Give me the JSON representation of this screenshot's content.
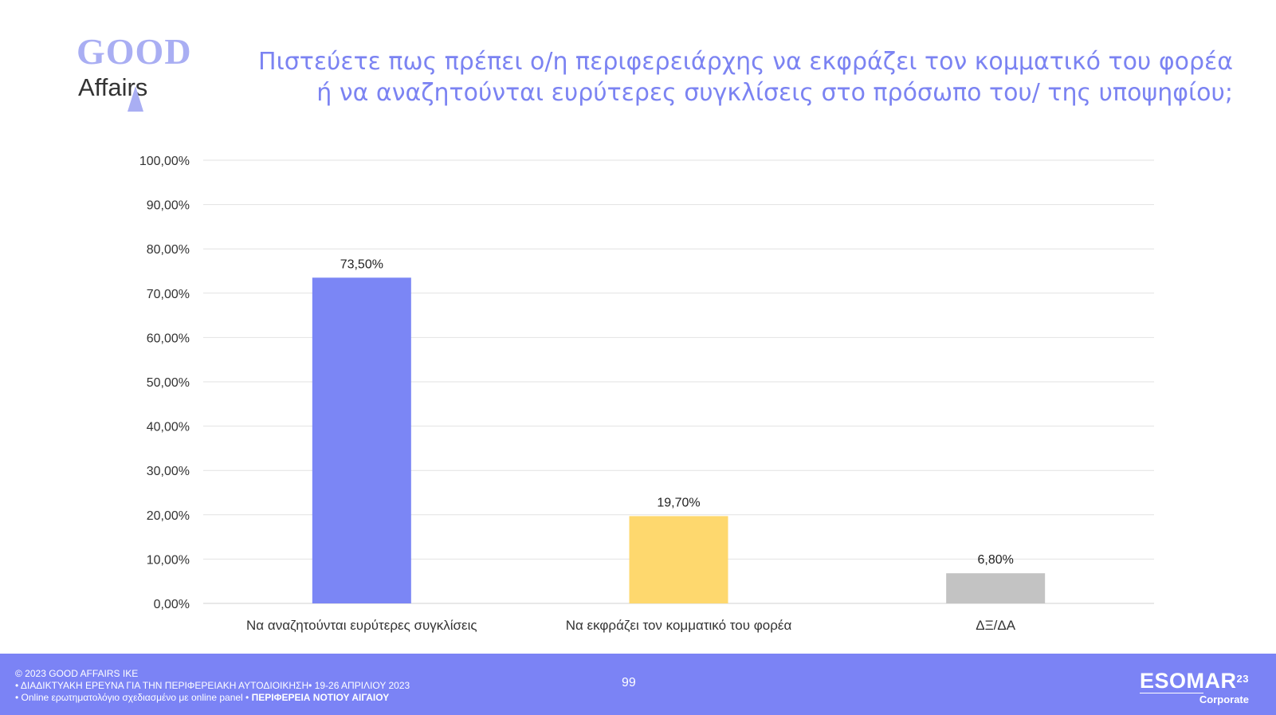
{
  "logo": {
    "top": "GOOD",
    "bottom": "Affairs"
  },
  "title_lines": [
    "Πιστεύετε πως πρέπει ο/η περιφερειάρχης  να εκφράζει τον κομματικό του φορέα",
    "ή να αναζητούνται ευρύτερες συγκλίσεις στο πρόσωπο του/ της υποψηφίου;"
  ],
  "chart_data": {
    "type": "bar",
    "title": "Πιστεύετε πως πρέπει ο/η περιφερειάρχης  να εκφράζει τον κομματικό του φορέα ή να αναζητούνται ευρύτερες συγκλίσεις στο πρόσωπο του/ της υποψηφίου;",
    "categories": [
      "Να αναζητούνται ευρύτερες συγκλίσεις",
      "Να εκφράζει τον κομματικό του φορέα",
      "ΔΞ/ΔΑ"
    ],
    "values": [
      73.5,
      19.7,
      6.8
    ],
    "data_labels": [
      "73,50%",
      "19,70%",
      "6,80%"
    ],
    "colors": [
      "#7b86f5",
      "#fed86e",
      "#c3c3c3"
    ],
    "ylim": [
      0,
      100
    ],
    "yticks": [
      0,
      10,
      20,
      30,
      40,
      50,
      60,
      70,
      80,
      90,
      100
    ],
    "ytick_labels": [
      "0,00%",
      "10,00%",
      "20,00%",
      "30,00%",
      "40,00%",
      "50,00%",
      "60,00%",
      "70,00%",
      "80,00%",
      "90,00%",
      "100,00%"
    ],
    "xlabel": "",
    "ylabel": "",
    "grid": true,
    "legend": "none"
  },
  "footer": {
    "copyright": "© 2023 GOOD AFFAIRS IKE",
    "line2": "• ΔΙΑΔΙΚΤΥΑΚΗ ΕΡΕΥΝΑ  ΓΙΑ ΤΗΝ ΠΕΡΙΦΕΡΕΙΑΚΗ ΑΥΤΟΔΙΟΙΚΗΣΗ• 19-26 ΑΠΡΙΛΙΟΥ 2023",
    "line3_prefix": "• Online ερωτηματολόγιο σχεδιασμένο με online panel  • ",
    "line3_bold": "ΠΕΡΙΦΕΡΕΙΑ ΝΟΤΙΟΥ ΑΙΓΑΙΟΥ",
    "page_number": "99",
    "esomar": {
      "name": "ESOMAR",
      "sup": "23",
      "sub": "Corporate"
    }
  }
}
